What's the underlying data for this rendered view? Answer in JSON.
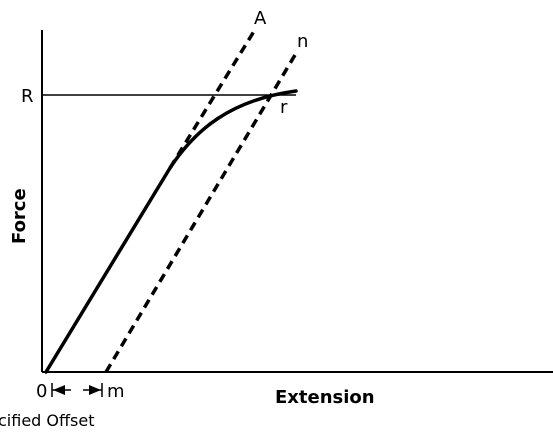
{
  "diagram": {
    "point_labels": {
      "A": "A",
      "n": "n",
      "R": "R",
      "r": "r",
      "origin": "0",
      "m": "m"
    },
    "x_axis_label": "Extension",
    "y_axis_label": "Force",
    "offset_caption": "cified Offset"
  }
}
